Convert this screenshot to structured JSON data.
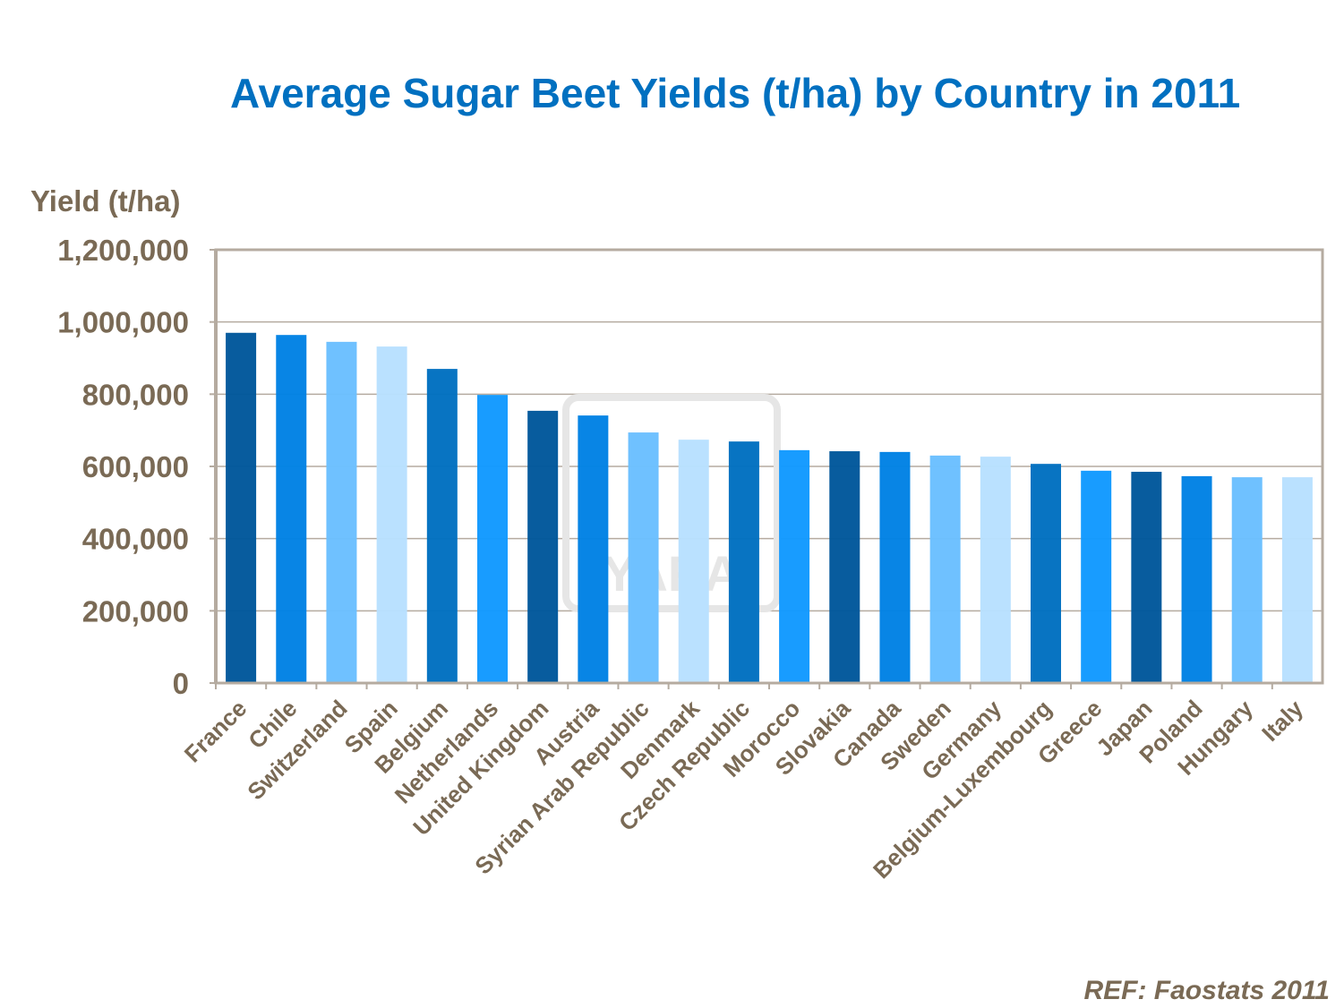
{
  "chart_data": {
    "type": "bar",
    "title": "Average Sugar Beet Yields (t/ha) by Country in 2011",
    "ylabel": "Yield (t/ha)",
    "xlabel": "",
    "ylim": [
      0,
      1200000
    ],
    "yticks": [
      0,
      200000,
      400000,
      600000,
      800000,
      1000000,
      1200000
    ],
    "ytick_labels": [
      "0",
      "200,000",
      "400,000",
      "600,000",
      "800,000",
      "1,000,000",
      "1,200,000"
    ],
    "grid": true,
    "categories": [
      "France",
      "Chile",
      "Switzerland",
      "Spain",
      "Belgium",
      "Netherlands",
      "United Kingdom",
      "Austria",
      "Syrian Arab Republic",
      "Denmark",
      "Czech Republic",
      "Morocco",
      "Slovakia",
      "Canada",
      "Sweden",
      "Germany",
      "Belgium-Luxembourg",
      "Greece",
      "Japan",
      "Poland",
      "Hungary",
      "Italy"
    ],
    "values": [
      970000,
      964000,
      945000,
      932000,
      870000,
      798000,
      754000,
      741000,
      694000,
      674000,
      669000,
      645000,
      642000,
      640000,
      630000,
      627000,
      607000,
      588000,
      585000,
      573000,
      570000,
      570000
    ],
    "colors": [
      "#00579b",
      "#0081e4",
      "#6abfff",
      "#b8e0ff",
      "#0070c0",
      "#1199ff"
    ],
    "source": "REF: Faostats 2011",
    "watermark": "YARA"
  }
}
